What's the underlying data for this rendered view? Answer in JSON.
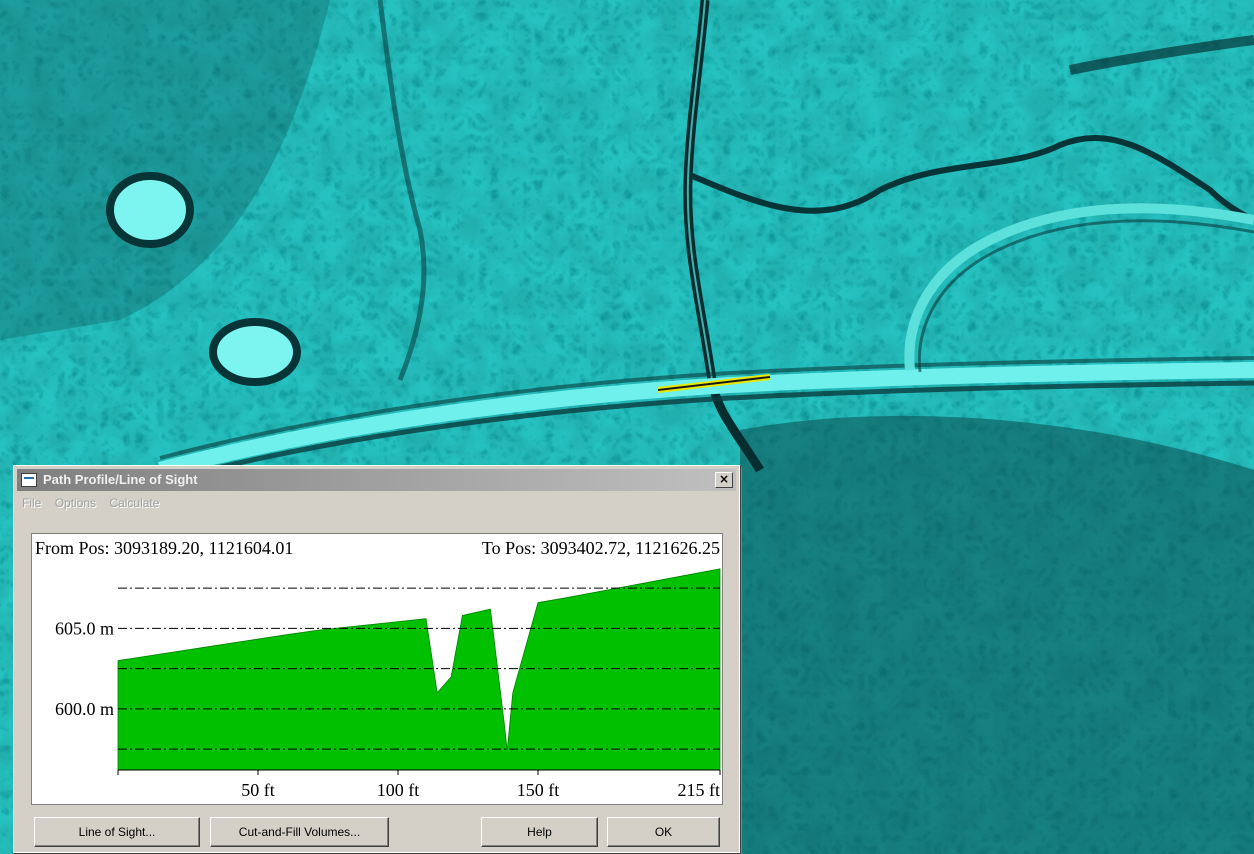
{
  "dialog": {
    "title": "Path Profile/Line of Sight",
    "close_label": "×",
    "menu": [
      "File",
      "Options",
      "Calculate"
    ],
    "from_pos": "From Pos: 3093189.20, 1121604.01",
    "to_pos": "To Pos: 3093402.72, 1121626.25",
    "buttons": {
      "line_of_sight": "Line of Sight...",
      "cut_and_fill": "Cut-and-Fill Volumes...",
      "help": "Help",
      "ok": "OK"
    }
  },
  "chart_data": {
    "type": "area",
    "x_ticks": [
      50,
      100,
      150,
      215
    ],
    "x_tick_labels": [
      "50 ft",
      "100 ft",
      "150 ft",
      "215 ft"
    ],
    "y_ticks": [
      600,
      605
    ],
    "y_tick_labels": [
      "600.0 m",
      "605.0 m"
    ],
    "xlim": [
      0,
      215
    ],
    "ylim": [
      596.2,
      609.0
    ],
    "grid_lines_y": [
      597.5,
      600.0,
      602.5,
      605.0,
      607.5
    ],
    "fill_color": "#00c000",
    "series": [
      {
        "x": [
          0,
          30,
          60,
          72,
          110,
          114,
          119,
          123,
          133,
          138,
          139,
          141,
          150,
          160,
          215
        ],
        "y": [
          603.0,
          603.8,
          604.6,
          604.9,
          605.6,
          601.0,
          602.0,
          605.8,
          606.2,
          599.0,
          597.4,
          601.0,
          606.6,
          606.9,
          608.7
        ]
      }
    ]
  },
  "map": {
    "background_color": "#1fa6a6",
    "profile_line_color": "#e8e800"
  }
}
